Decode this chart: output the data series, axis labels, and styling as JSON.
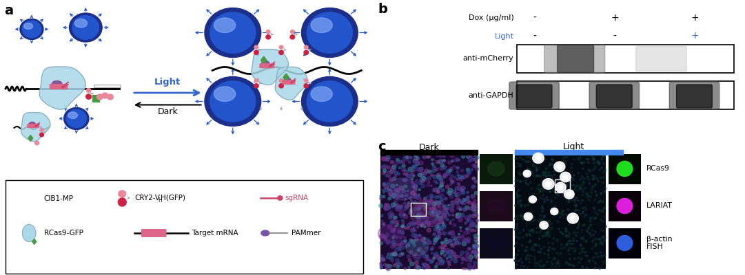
{
  "fig_width": 10.81,
  "fig_height": 4.0,
  "dpi": 100,
  "panel_a_label": "a",
  "panel_b_label": "b",
  "panel_c_label": "c",
  "light_color": "#3366cc",
  "blue_ball_dark": "#1a2e8a",
  "blue_ball_mid": "#2255cc",
  "blue_ball_light": "#6699ee",
  "blue_ball_highlight": "#99bbff",
  "arrow_blue": "#2255cc",
  "cry2_pink": "#e88899",
  "cry2_red": "#cc2244",
  "cry2_gray": "#aaaaaa",
  "rcas9_body": "#aad8e8",
  "rcas9_outline": "#88aabb",
  "rcas9_green": "#4a9a44",
  "mrna_pink": "#dd6688",
  "pammer_purple": "#7755aa",
  "sgrna_pink": "#cc4466",
  "black": "#000000",
  "white": "#ffffff",
  "legend_font": 7.5,
  "panel_font": 14,
  "wb_font": 8,
  "dox_cols": [
    "-",
    "+",
    "+"
  ],
  "light_cols": [
    "-",
    "-",
    "+"
  ],
  "anti_mcherry": "anti-mCherry",
  "anti_gapdh": "anti-GAPDH",
  "dark_label": "Dark",
  "light_label": "Light",
  "rcas9_legend": "RCas9",
  "lariat_legend": "LARIAT",
  "bactin_line1": "β-actin",
  "bactin_line2": "FISH"
}
